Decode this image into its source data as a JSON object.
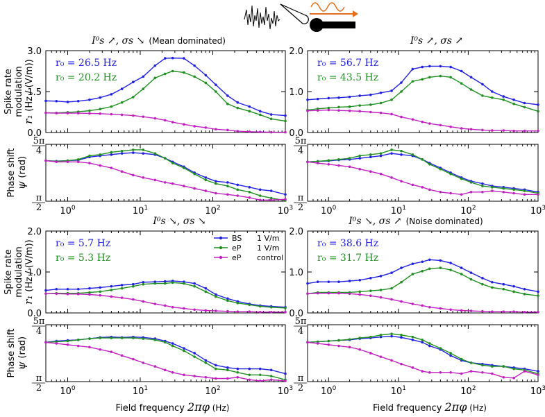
{
  "figure": {
    "xlabel_text": "Field frequency",
    "xlabel_sym": "2πφ",
    "xlabel_unit": "(Hz)",
    "rate_ylabel_1": "Spike rate",
    "rate_ylabel_2": "modulation",
    "rate_ylabel_3": "(Hz / (V/m))",
    "rate_ylabel_sym": "r₁",
    "phase_ylabel_1": "Phase shift",
    "phase_ylabel_2": "(rad)",
    "phase_ylabel_sym": "ψ",
    "phase_tick_top": "5π/4",
    "phase_tick_bottom": "π/2",
    "x_ticks": [
      "10⁰",
      "10¹",
      "10²",
      "10³"
    ],
    "colors": {
      "BS": "#2020e0",
      "eP1": "#1f8f1f",
      "ctrl": "#c020c0",
      "ylabel_red": "#b03010"
    }
  },
  "legend": {
    "items": [
      {
        "name": "BS",
        "value": "1 V/m"
      },
      {
        "name": "eP",
        "value": "1 V/m"
      },
      {
        "name": "eP",
        "value": "control"
      }
    ]
  },
  "chart_data": [
    {
      "type": "line",
      "panel": "top-left",
      "title": "I⁰s ↗, σs ↘",
      "title_note": "(Mean dominated)",
      "ylim": [
        0,
        3.0
      ],
      "y_ticks": [
        "0.0",
        "1.5",
        "3.0"
      ],
      "y_ticks_red": true,
      "xscale": "log",
      "xlim": [
        0.5,
        1000
      ],
      "r0": [
        {
          "label": "r₀ = 26.5 Hz",
          "series": "BS"
        },
        {
          "label": "r₀ = 20.2 Hz",
          "series": "eP 1 V/m"
        }
      ],
      "x": [
        0.5,
        0.7,
        1,
        1.4,
        2,
        2.8,
        4,
        5.6,
        8,
        11,
        16,
        22,
        28,
        40,
        56,
        80,
        110,
        160,
        220,
        320,
        450,
        640,
        1000
      ],
      "series": [
        {
          "name": "BS 1 V/m",
          "values": [
            1.16,
            1.15,
            1.12,
            1.15,
            1.2,
            1.28,
            1.4,
            1.6,
            1.85,
            2.05,
            2.45,
            2.72,
            2.73,
            2.72,
            2.45,
            2.1,
            1.75,
            1.35,
            1.1,
            0.95,
            0.78,
            0.66,
            0.62
          ]
        },
        {
          "name": "eP 1 V/m",
          "values": [
            0.72,
            0.72,
            0.74,
            0.76,
            0.8,
            0.86,
            0.95,
            1.1,
            1.3,
            1.6,
            2.0,
            2.15,
            2.25,
            2.2,
            2.05,
            1.82,
            1.5,
            1.05,
            0.9,
            0.78,
            0.65,
            0.5,
            0.42
          ]
        },
        {
          "name": "eP control",
          "values": [
            0.72,
            0.71,
            0.71,
            0.71,
            0.7,
            0.69,
            0.67,
            0.65,
            0.62,
            0.58,
            0.52,
            0.45,
            0.38,
            0.3,
            0.23,
            0.18,
            0.12,
            0.09,
            0.05,
            0.03,
            0.02,
            0.01,
            0.01
          ]
        }
      ]
    },
    {
      "type": "line",
      "panel": "top-right",
      "title": "I⁰s ↗, σs ↗",
      "title_note": "",
      "ylim": [
        0,
        2.0
      ],
      "y_ticks": [
        "0.0",
        "1.0",
        "2.0"
      ],
      "y_ticks_red": true,
      "xscale": "log",
      "xlim": [
        0.5,
        1000
      ],
      "r0": [
        {
          "label": "r₀ = 56.7 Hz",
          "series": "BS"
        },
        {
          "label": "r₀ = 43.5 Hz",
          "series": "eP 1 V/m"
        }
      ],
      "x": [
        0.5,
        0.7,
        1,
        1.4,
        2,
        2.8,
        4,
        5.6,
        8,
        11,
        16,
        22,
        28,
        40,
        56,
        80,
        110,
        160,
        220,
        320,
        450,
        640,
        1000
      ],
      "series": [
        {
          "name": "BS 1 V/m",
          "values": [
            0.8,
            0.82,
            0.84,
            0.85,
            0.87,
            0.9,
            0.92,
            0.97,
            1.02,
            1.22,
            1.55,
            1.6,
            1.62,
            1.62,
            1.6,
            1.5,
            1.35,
            1.18,
            1.0,
            0.88,
            0.8,
            0.72,
            0.68
          ]
        },
        {
          "name": "eP 1 V/m",
          "values": [
            0.55,
            0.58,
            0.6,
            0.62,
            0.63,
            0.66,
            0.68,
            0.72,
            0.8,
            1.0,
            1.25,
            1.3,
            1.35,
            1.38,
            1.35,
            1.2,
            1.05,
            0.9,
            0.85,
            0.8,
            0.7,
            0.62,
            0.52
          ]
        },
        {
          "name": "eP control",
          "values": [
            0.53,
            0.54,
            0.55,
            0.54,
            0.53,
            0.52,
            0.5,
            0.48,
            0.45,
            0.38,
            0.32,
            0.26,
            0.22,
            0.18,
            0.14,
            0.1,
            0.08,
            0.06,
            0.05,
            0.05,
            0.04,
            0.04,
            0.04
          ]
        }
      ]
    },
    {
      "type": "line",
      "panel": "phase-top-left",
      "ylabel": "ψ (rad)",
      "ylim": [
        1.5708,
        3.927
      ],
      "y_ticks": [
        "π/2",
        "5π/4"
      ],
      "xscale": "log",
      "xlim": [
        0.5,
        1000
      ],
      "x": [
        0.5,
        0.7,
        1,
        1.4,
        2,
        2.8,
        4,
        5.6,
        8,
        11,
        16,
        22,
        28,
        40,
        56,
        80,
        110,
        160,
        220,
        320,
        450,
        640,
        1000
      ],
      "series": [
        {
          "name": "BS 1 V/m",
          "values": [
            3.25,
            3.23,
            3.25,
            3.27,
            3.4,
            3.45,
            3.5,
            3.55,
            3.58,
            3.55,
            3.5,
            3.35,
            3.2,
            3.0,
            2.75,
            2.55,
            2.4,
            2.35,
            2.25,
            2.15,
            2.05,
            2.0,
            1.85
          ]
        },
        {
          "name": "eP 1 V/m",
          "values": [
            3.25,
            3.22,
            3.25,
            3.3,
            3.45,
            3.5,
            3.6,
            3.65,
            3.7,
            3.7,
            3.55,
            3.35,
            3.15,
            2.95,
            2.7,
            2.45,
            2.3,
            2.2,
            2.05,
            1.95,
            1.8,
            1.7,
            1.6
          ]
        },
        {
          "name": "eP control",
          "values": [
            3.25,
            3.2,
            3.2,
            3.2,
            3.15,
            3.05,
            2.95,
            2.8,
            2.65,
            2.55,
            2.45,
            2.35,
            2.3,
            2.2,
            2.1,
            2.0,
            1.9,
            1.85,
            1.8,
            1.72,
            1.62,
            1.62,
            1.65
          ]
        }
      ]
    },
    {
      "type": "line",
      "panel": "phase-top-right",
      "ylabel": "ψ (rad)",
      "ylim": [
        1.5708,
        3.927
      ],
      "y_ticks": [
        "π/2",
        "5π/4"
      ],
      "xscale": "log",
      "xlim": [
        0.5,
        1000
      ],
      "x": [
        0.5,
        0.7,
        1,
        1.4,
        2,
        2.8,
        4,
        5.6,
        8,
        11,
        16,
        22,
        28,
        40,
        56,
        80,
        110,
        160,
        220,
        320,
        450,
        640,
        1000
      ],
      "series": [
        {
          "name": "BS 1 V/m",
          "values": [
            3.2,
            3.22,
            3.24,
            3.28,
            3.3,
            3.35,
            3.4,
            3.45,
            3.55,
            3.5,
            3.45,
            3.3,
            3.15,
            2.95,
            2.75,
            2.55,
            2.4,
            2.3,
            2.2,
            2.15,
            2.1,
            2.05,
            1.95
          ]
        },
        {
          "name": "eP 1 V/m",
          "values": [
            3.2,
            3.22,
            3.26,
            3.3,
            3.35,
            3.45,
            3.5,
            3.55,
            3.7,
            3.65,
            3.5,
            3.3,
            3.1,
            2.9,
            2.7,
            2.5,
            2.35,
            2.2,
            2.15,
            2.1,
            2.05,
            2.0,
            1.9
          ]
        },
        {
          "name": "eP control",
          "values": [
            3.2,
            3.15,
            3.1,
            3.05,
            3.0,
            2.9,
            2.8,
            2.7,
            2.55,
            2.4,
            2.25,
            2.15,
            2.05,
            1.95,
            1.9,
            1.85,
            1.95,
            1.95,
            2.0,
            1.95,
            1.9,
            1.85,
            1.85
          ]
        }
      ]
    },
    {
      "type": "line",
      "panel": "bottom-left",
      "title": "I⁰s ↘, σs ↘",
      "title_note": "",
      "ylim": [
        0,
        2.0
      ],
      "y_ticks": [
        "0.0",
        "1.0",
        "2.0"
      ],
      "y_ticks_red": false,
      "xscale": "log",
      "xlim": [
        0.5,
        1000
      ],
      "r0": [
        {
          "label": "r₀ = 5.7 Hz",
          "series": "BS"
        },
        {
          "label": "r₀ = 5.3 Hz",
          "series": "eP 1 V/m"
        }
      ],
      "x": [
        0.5,
        0.7,
        1,
        1.4,
        2,
        2.8,
        4,
        5.6,
        8,
        11,
        16,
        22,
        28,
        40,
        56,
        80,
        110,
        160,
        220,
        320,
        450,
        640,
        1000
      ],
      "series": [
        {
          "name": "BS 1 V/m",
          "values": [
            0.55,
            0.58,
            0.58,
            0.58,
            0.6,
            0.62,
            0.65,
            0.68,
            0.7,
            0.75,
            0.76,
            0.77,
            0.78,
            0.76,
            0.72,
            0.6,
            0.45,
            0.35,
            0.28,
            0.22,
            0.18,
            0.16,
            0.14
          ]
        },
        {
          "name": "eP 1 V/m",
          "values": [
            0.47,
            0.48,
            0.48,
            0.48,
            0.5,
            0.52,
            0.56,
            0.6,
            0.65,
            0.7,
            0.72,
            0.72,
            0.74,
            0.72,
            0.65,
            0.52,
            0.4,
            0.3,
            0.24,
            0.2,
            0.16,
            0.14,
            0.12
          ]
        },
        {
          "name": "eP control",
          "values": [
            0.47,
            0.47,
            0.46,
            0.46,
            0.45,
            0.43,
            0.4,
            0.37,
            0.33,
            0.28,
            0.22,
            0.18,
            0.14,
            0.11,
            0.08,
            0.06,
            0.05,
            0.04,
            0.03,
            0.03,
            0.02,
            0.02,
            0.02
          ]
        }
      ]
    },
    {
      "type": "line",
      "panel": "bottom-right",
      "title": "I⁰s ↘, σs ↗",
      "title_note": "(Noise dominated)",
      "ylim": [
        0,
        2.0
      ],
      "y_ticks": [
        "0.0",
        "1.0",
        "2.0"
      ],
      "y_ticks_red": false,
      "xscale": "log",
      "xlim": [
        0.5,
        1000
      ],
      "r0": [
        {
          "label": "r₀ = 38.6 Hz",
          "series": "BS"
        },
        {
          "label": "r₀ = 31.7 Hz",
          "series": "eP 1 V/m"
        }
      ],
      "x": [
        0.5,
        0.7,
        1,
        1.4,
        2,
        2.8,
        4,
        5.6,
        8,
        11,
        16,
        22,
        28,
        40,
        56,
        80,
        110,
        160,
        220,
        320,
        450,
        640,
        1000
      ],
      "series": [
        {
          "name": "BS 1 V/m",
          "values": [
            0.72,
            0.76,
            0.76,
            0.76,
            0.78,
            0.8,
            0.85,
            0.9,
            0.98,
            1.1,
            1.2,
            1.25,
            1.3,
            1.28,
            1.22,
            1.1,
            0.98,
            0.85,
            0.75,
            0.7,
            0.65,
            0.58,
            0.52
          ]
        },
        {
          "name": "eP 1 V/m",
          "values": [
            0.47,
            0.5,
            0.5,
            0.5,
            0.5,
            0.52,
            0.54,
            0.56,
            0.6,
            0.75,
            0.95,
            1.02,
            1.08,
            1.1,
            1.05,
            0.95,
            0.82,
            0.7,
            0.62,
            0.58,
            0.52,
            0.46,
            0.42
          ]
        },
        {
          "name": "eP control",
          "values": [
            0.47,
            0.48,
            0.48,
            0.48,
            0.47,
            0.45,
            0.42,
            0.38,
            0.33,
            0.28,
            0.22,
            0.18,
            0.14,
            0.11,
            0.08,
            0.06,
            0.05,
            0.04,
            0.03,
            0.03,
            0.03,
            0.02,
            0.02
          ]
        }
      ]
    },
    {
      "type": "line",
      "panel": "phase-bottom-left",
      "ylabel": "ψ (rad)",
      "ylim": [
        1.5708,
        3.927
      ],
      "y_ticks": [
        "π/2",
        "5π/4"
      ],
      "xscale": "log",
      "xlim": [
        0.5,
        1000
      ],
      "x": [
        0.5,
        0.7,
        1,
        1.4,
        2,
        2.8,
        4,
        5.6,
        8,
        11,
        16,
        22,
        28,
        40,
        56,
        80,
        110,
        160,
        220,
        320,
        450,
        640,
        1000
      ],
      "series": [
        {
          "name": "BS 1 V/m",
          "values": [
            3.2,
            3.25,
            3.28,
            3.3,
            3.35,
            3.4,
            3.42,
            3.4,
            3.42,
            3.4,
            3.35,
            3.25,
            3.15,
            2.95,
            2.75,
            2.45,
            2.25,
            2.15,
            2.1,
            2.1,
            2.1,
            2.05,
            1.9
          ]
        },
        {
          "name": "eP 1 V/m",
          "values": [
            3.2,
            3.22,
            3.25,
            3.3,
            3.35,
            3.38,
            3.38,
            3.38,
            3.38,
            3.35,
            3.3,
            3.2,
            3.05,
            2.85,
            2.6,
            2.35,
            2.1,
            2.05,
            1.95,
            1.85,
            1.85,
            1.8,
            1.65
          ]
        },
        {
          "name": "eP control",
          "values": [
            3.2,
            3.15,
            3.1,
            3.05,
            3.0,
            2.9,
            2.8,
            2.65,
            2.5,
            2.35,
            2.2,
            2.05,
            1.95,
            1.85,
            1.8,
            1.75,
            1.7,
            1.7,
            1.75,
            1.65,
            1.6,
            1.65,
            1.6
          ]
        }
      ]
    },
    {
      "type": "line",
      "panel": "phase-bottom-right",
      "ylabel": "ψ (rad)",
      "ylim": [
        1.5708,
        3.927
      ],
      "y_ticks": [
        "π/2",
        "5π/4"
      ],
      "xscale": "log",
      "xlim": [
        0.5,
        1000
      ],
      "x": [
        0.5,
        0.7,
        1,
        1.4,
        2,
        2.8,
        4,
        5.6,
        8,
        11,
        16,
        22,
        28,
        40,
        56,
        80,
        110,
        160,
        220,
        320,
        450,
        640,
        1000
      ],
      "series": [
        {
          "name": "BS 1 V/m",
          "values": [
            3.2,
            3.22,
            3.25,
            3.28,
            3.3,
            3.35,
            3.38,
            3.42,
            3.45,
            3.4,
            3.3,
            3.2,
            3.05,
            2.9,
            2.65,
            2.45,
            2.35,
            2.3,
            2.25,
            2.2,
            2.15,
            2.1,
            2.0
          ]
        },
        {
          "name": "eP 1 V/m",
          "values": [
            3.2,
            3.22,
            3.25,
            3.28,
            3.32,
            3.38,
            3.42,
            3.5,
            3.55,
            3.5,
            3.42,
            3.3,
            3.15,
            2.95,
            2.75,
            2.5,
            2.35,
            2.25,
            2.2,
            2.2,
            2.1,
            2.05,
            1.9
          ]
        },
        {
          "name": "eP control",
          "values": [
            3.2,
            3.15,
            3.1,
            3.05,
            3.0,
            2.9,
            2.75,
            2.6,
            2.45,
            2.3,
            2.15,
            2.0,
            1.95,
            1.95,
            1.95,
            1.9,
            2.0,
            1.95,
            1.9,
            1.75,
            1.72,
            2.0,
            1.85
          ]
        }
      ]
    }
  ]
}
